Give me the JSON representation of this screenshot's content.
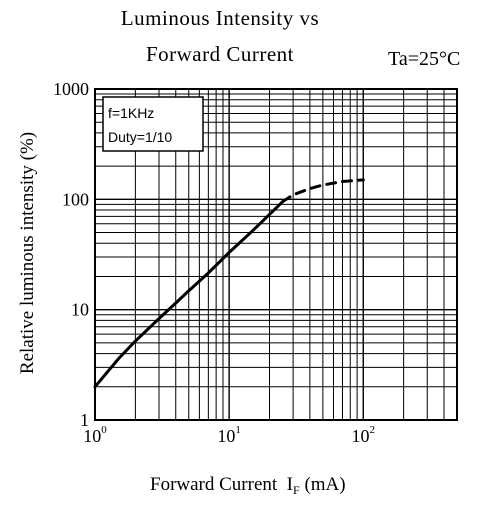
{
  "chart_data": {
    "type": "line",
    "title_line1": "Luminous Intensity vs",
    "title_line2": "Forward Current",
    "condition": "Ta=25°C",
    "xlabel": "Forward Current",
    "xlabel_symbol": "I",
    "xlabel_subscript": "F",
    "xlabel_unit": "(mA)",
    "ylabel": "Relative luminous intensity (%)",
    "x_scale": "log",
    "y_scale": "log",
    "xlim": [
      1,
      500
    ],
    "ylim": [
      1,
      1000
    ],
    "x_ticks": [
      {
        "value": 1,
        "base": "10",
        "exp": "0"
      },
      {
        "value": 10,
        "base": "10",
        "exp": "1"
      },
      {
        "value": 100,
        "base": "10",
        "exp": "2"
      }
    ],
    "y_ticks": [
      {
        "value": 1,
        "label": "1"
      },
      {
        "value": 10,
        "label": "10"
      },
      {
        "value": 100,
        "label": "100"
      },
      {
        "value": 1000,
        "label": "1000"
      }
    ],
    "grid": true,
    "legend_box": {
      "line1": "f=1KHz",
      "line2": "Duty=1/10",
      "placement": "top-left"
    },
    "series": [
      {
        "style": "solid",
        "points": [
          [
            1,
            2.0
          ],
          [
            1.5,
            3.6
          ],
          [
            2,
            5.2
          ],
          [
            3,
            8.3
          ],
          [
            4,
            11.5
          ],
          [
            5,
            14.8
          ],
          [
            7,
            21.5
          ],
          [
            10,
            33
          ],
          [
            15,
            52
          ],
          [
            20,
            73
          ],
          [
            25,
            95
          ]
        ]
      },
      {
        "style": "dashed",
        "points": [
          [
            25,
            95
          ],
          [
            30,
            110
          ],
          [
            40,
            125
          ],
          [
            50,
            135
          ],
          [
            70,
            145
          ],
          [
            100,
            150
          ]
        ]
      }
    ]
  }
}
